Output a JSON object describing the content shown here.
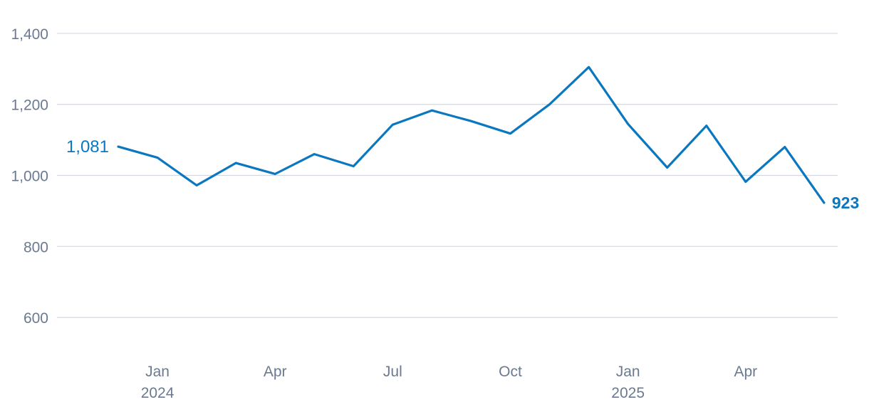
{
  "chart_data": {
    "type": "line",
    "title": "",
    "xlabel": "",
    "ylabel": "",
    "ylim": [
      500,
      1450
    ],
    "yticks": [
      600,
      800,
      1000,
      1200,
      1400
    ],
    "ytick_labels": [
      "600",
      "800",
      "1,000",
      "1,200",
      "1,400"
    ],
    "grid": true,
    "x": [
      "2023-12",
      "2024-01",
      "2024-02",
      "2024-03",
      "2024-04",
      "2024-05",
      "2024-06",
      "2024-07",
      "2024-08",
      "2024-09",
      "2024-10",
      "2024-11",
      "2024-12",
      "2025-01",
      "2025-02",
      "2025-03",
      "2025-04",
      "2025-05",
      "2025-06"
    ],
    "xticks": [
      {
        "month": "2024-01",
        "label": "Jan",
        "year": "2024"
      },
      {
        "month": "2024-04",
        "label": "Apr",
        "year": ""
      },
      {
        "month": "2024-07",
        "label": "Jul",
        "year": ""
      },
      {
        "month": "2024-10",
        "label": "Oct",
        "year": ""
      },
      {
        "month": "2025-01",
        "label": "Jan",
        "year": "2025"
      },
      {
        "month": "2025-04",
        "label": "Apr",
        "year": ""
      }
    ],
    "series": [
      {
        "color": "#0b77bf",
        "values": [
          1081,
          1050,
          972,
          1035,
          1004,
          1060,
          1026,
          1143,
          1183,
          1153,
          1118,
          1200,
          1305,
          1145,
          1022,
          1140,
          982,
          1080,
          923
        ]
      }
    ],
    "annotations": [
      {
        "index": 0,
        "text": "1,081"
      },
      {
        "index": 18,
        "text": "923"
      }
    ]
  }
}
